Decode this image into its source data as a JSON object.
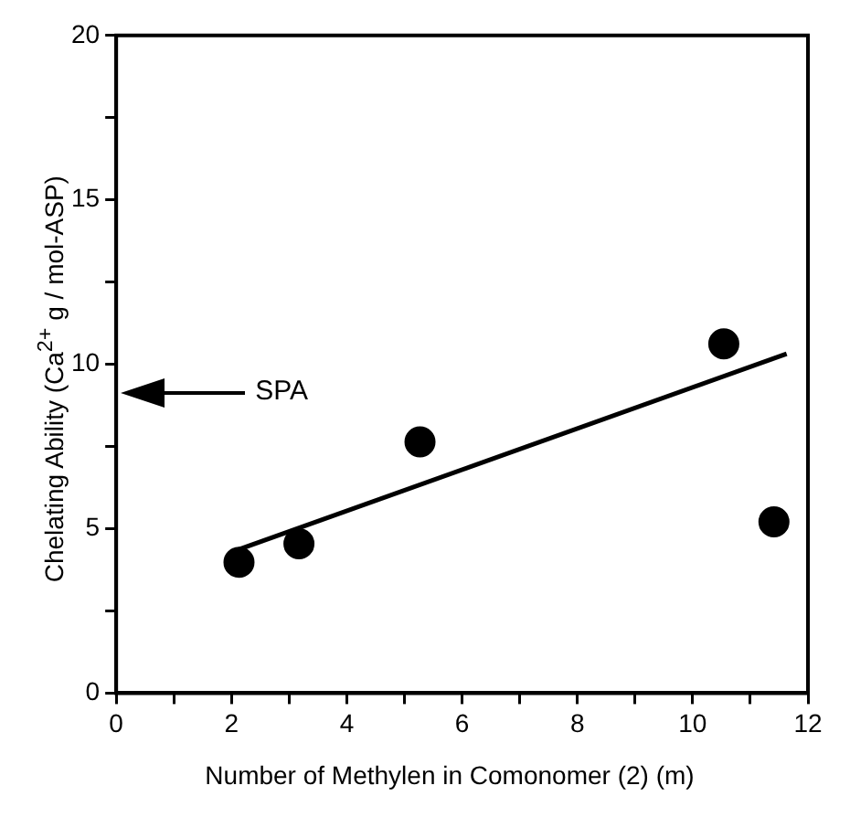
{
  "chart_data": {
    "type": "scatter",
    "xlabel": "Number of Methylen in Comonomer (2) (m)",
    "ylabel": "Chelating Ability (Ca$^{2+}$ g / mol-ASP)",
    "series": [
      {
        "color": "#000000",
        "x": [
          2.13,
          3.17,
          5.27,
          10.54,
          11.41
        ],
        "values": [
          3.98,
          4.54,
          7.64,
          10.62,
          5.21
        ],
        "marker": "circle"
      },
      {
        "type": "line",
        "color": "#000000",
        "x": [
          2.13,
          11.63
        ],
        "values": [
          4.37,
          10.32
        ],
        "marker": "none",
        "line_style": "solid"
      }
    ],
    "ref_lines": [
      {
        "axis": "y",
        "value": 9.15,
        "label": "SPA"
      }
    ],
    "xlim": [
      0,
      12
    ],
    "ylim": [
      0,
      20
    ],
    "xticks": [
      0,
      {
        "value": 1,
        "label": null
      },
      2,
      {
        "value": 3,
        "label": null
      },
      4,
      {
        "value": 5,
        "label": null
      },
      6,
      {
        "value": 7,
        "label": null
      },
      8,
      {
        "value": 9,
        "label": null
      },
      10,
      {
        "value": 11,
        "label": null
      },
      12
    ],
    "yticks": [
      0,
      {
        "value": 2.5,
        "label": null
      },
      5,
      {
        "value": 7.5,
        "label": null
      },
      10,
      {
        "value": 12.5,
        "label": null
      },
      15,
      {
        "value": 17.5,
        "label": null
      },
      20
    ],
    "grid": false,
    "legend": false
  }
}
